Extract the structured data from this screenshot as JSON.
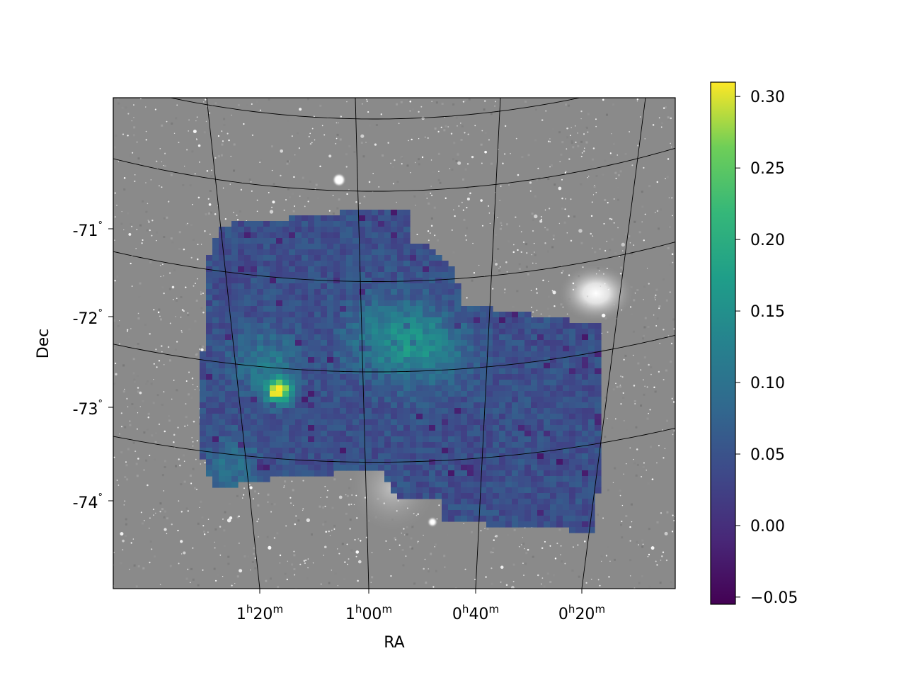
{
  "chart_data": {
    "type": "heatmap",
    "projection": "sky map (RA/Dec) over a greyscale star-field background image",
    "xlabel": "RA",
    "ylabel": "Dec",
    "ra_ticks": [
      {
        "h": "1",
        "m": "20"
      },
      {
        "h": "1",
        "m": "00"
      },
      {
        "h": "0",
        "m": "40"
      },
      {
        "h": "0",
        "m": "20"
      }
    ],
    "dec_ticks": [
      "-71",
      "-72",
      "-73",
      "-74"
    ],
    "degree_symbol": "°",
    "grid": true,
    "colorbar": {
      "colormap": "viridis",
      "range": [
        -0.055,
        0.31
      ],
      "ticks": [
        "0.30",
        "0.25",
        "0.20",
        "0.15",
        "0.10",
        "0.05",
        "0.00",
        "−0.05"
      ],
      "tick_values": [
        0.3,
        0.25,
        0.2,
        0.15,
        0.1,
        0.05,
        0.0,
        -0.05
      ],
      "placement": "right"
    },
    "map_summary": {
      "typical_value": 0.05,
      "peak_value": 0.31,
      "peak_location": {
        "ra": "1h17m",
        "dec": "-72.8"
      },
      "secondary_enhancements": [
        {
          "ra": "0h58m",
          "dec": "-72.3",
          "value": 0.12
        },
        {
          "ra": "0h45m",
          "dec": "-72.3",
          "value": 0.11
        },
        {
          "ra": "1h22m",
          "dec": "-72.7",
          "value": 0.12
        }
      ]
    },
    "colors": {
      "background_sky": "#8a8a8a",
      "grid_lines": "#000000"
    }
  }
}
